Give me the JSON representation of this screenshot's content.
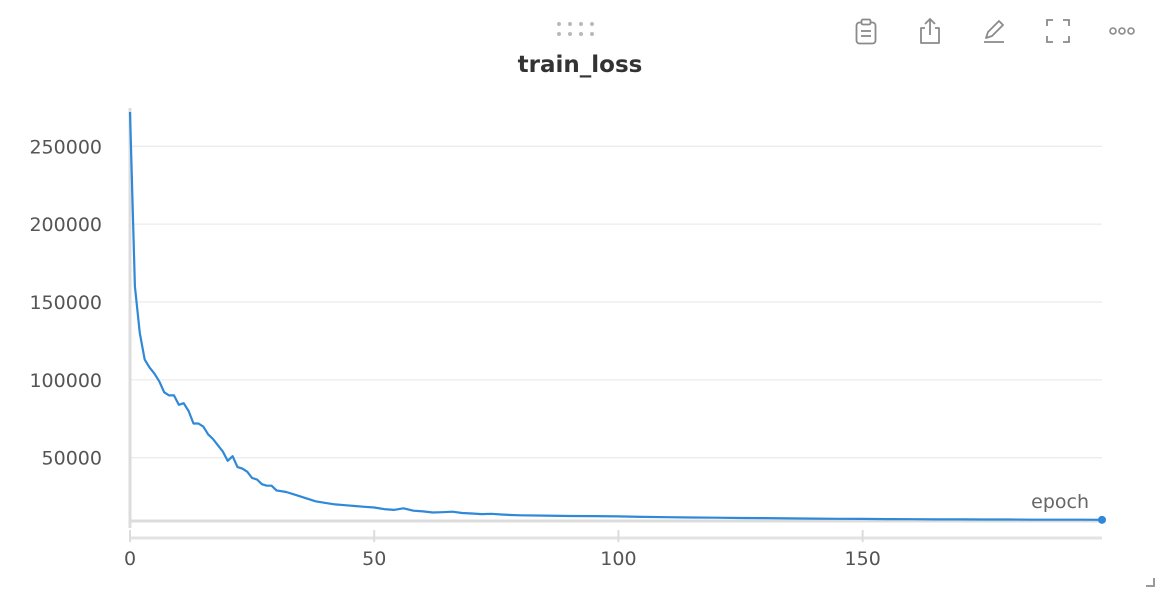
{
  "panel": {
    "title": "train_loss",
    "toolbar": [
      {
        "name": "clipboard-icon",
        "label": "Copy"
      },
      {
        "name": "share-icon",
        "label": "Export"
      },
      {
        "name": "pencil-icon",
        "label": "Edit"
      },
      {
        "name": "fullscreen-icon",
        "label": "Full screen"
      },
      {
        "name": "more-icon",
        "label": "More"
      }
    ]
  },
  "chart_data": {
    "type": "line",
    "title": "train_loss",
    "xlabel": "epoch",
    "ylabel": "",
    "xlim": [
      0,
      199
    ],
    "ylim": [
      10000,
      272000
    ],
    "x_ticks": [
      0,
      50,
      100,
      150
    ],
    "y_ticks": [
      50000,
      100000,
      150000,
      200000,
      250000
    ],
    "grid": true,
    "legend": "none",
    "color": "#2f88d8",
    "series": [
      {
        "x": [
          0,
          1,
          2,
          3,
          4,
          5,
          6,
          7,
          8,
          9,
          10,
          11,
          12,
          13,
          14,
          15,
          16,
          17,
          18,
          19,
          20,
          21,
          22,
          23,
          24,
          25,
          26,
          27,
          28,
          29,
          30,
          32,
          34,
          36,
          38,
          40,
          42,
          44,
          46,
          48,
          50,
          52,
          54,
          56,
          58,
          60,
          62,
          64,
          66,
          68,
          70,
          72,
          74,
          76,
          78,
          80,
          85,
          90,
          95,
          100,
          105,
          110,
          115,
          120,
          125,
          130,
          135,
          140,
          145,
          150,
          155,
          160,
          165,
          170,
          175,
          180,
          185,
          190,
          195,
          199
        ],
        "y": [
          272000,
          160000,
          130000,
          113000,
          108000,
          104000,
          99000,
          92000,
          90000,
          90000,
          84000,
          85000,
          80000,
          72000,
          72000,
          70000,
          65000,
          62000,
          58000,
          54000,
          48000,
          51000,
          44000,
          43000,
          41000,
          37000,
          36000,
          33000,
          32000,
          32000,
          29000,
          28000,
          26000,
          24000,
          22000,
          21000,
          20000,
          19500,
          19000,
          18500,
          18000,
          17000,
          16500,
          17500,
          16000,
          15500,
          14800,
          15000,
          15300,
          14500,
          14200,
          13800,
          14000,
          13500,
          13200,
          13000,
          12800,
          12600,
          12500,
          12300,
          12000,
          11800,
          11600,
          11500,
          11300,
          11200,
          11000,
          10900,
          10800,
          10700,
          10600,
          10500,
          10400,
          10400,
          10300,
          10300,
          10200,
          10200,
          10200,
          10100
        ]
      }
    ]
  }
}
